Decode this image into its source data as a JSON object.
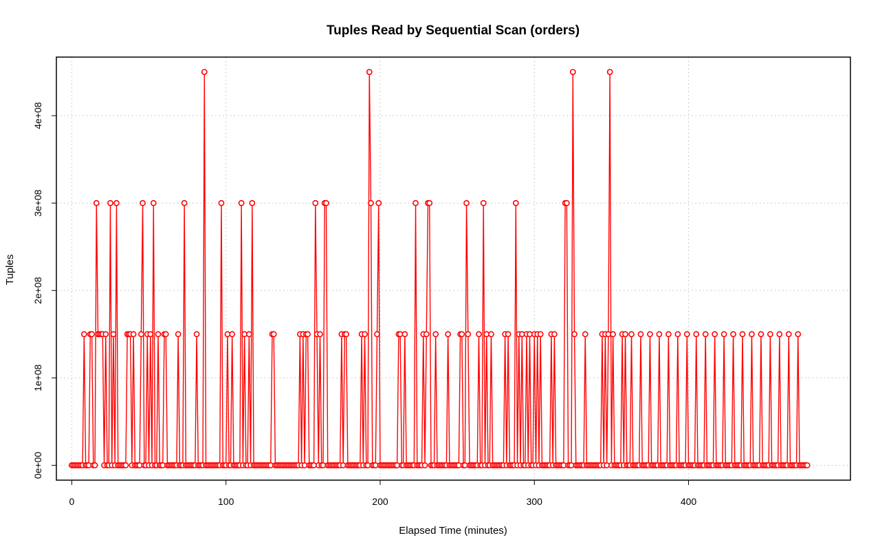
{
  "chart_data": {
    "type": "line",
    "title": "Tuples Read by Sequential Scan (orders)",
    "xlabel": "Elapsed Time (minutes)",
    "ylabel": "Tuples",
    "xlim": [
      -10,
      505
    ],
    "ylim": [
      -17000000,
      467000000
    ],
    "x_ticks": [
      0,
      100,
      200,
      300,
      400
    ],
    "x_tick_labels": [
      "0",
      "100",
      "200",
      "300",
      "400"
    ],
    "y_ticks": [
      0,
      100000000,
      200000000,
      300000000,
      400000000
    ],
    "y_tick_labels": [
      "0e+00",
      "1e+08",
      "2e+08",
      "3e+08",
      "4e+08"
    ],
    "grid": true,
    "grid_style": "dotted",
    "line_style": "line with circle markers",
    "series": [
      {
        "color": "#ff0000",
        "peaks": [
          {
            "x": 8,
            "y": 150000000
          },
          {
            "x": 12,
            "y": 150000000
          },
          {
            "x": 13,
            "y": 150000000
          },
          {
            "x": 16,
            "y": 300000000
          },
          {
            "x": 17,
            "y": 150000000
          },
          {
            "x": 18,
            "y": 150000000
          },
          {
            "x": 19,
            "y": 150000000
          },
          {
            "x": 20,
            "y": 150000000
          },
          {
            "x": 22,
            "y": 150000000
          },
          {
            "x": 25,
            "y": 300000000
          },
          {
            "x": 27,
            "y": 150000000
          },
          {
            "x": 29,
            "y": 300000000
          },
          {
            "x": 36,
            "y": 150000000
          },
          {
            "x": 37,
            "y": 150000000
          },
          {
            "x": 38,
            "y": 150000000
          },
          {
            "x": 40,
            "y": 150000000
          },
          {
            "x": 45,
            "y": 150000000
          },
          {
            "x": 46,
            "y": 300000000
          },
          {
            "x": 49,
            "y": 150000000
          },
          {
            "x": 51,
            "y": 150000000
          },
          {
            "x": 53,
            "y": 300000000
          },
          {
            "x": 56,
            "y": 150000000
          },
          {
            "x": 60,
            "y": 150000000
          },
          {
            "x": 61,
            "y": 150000000
          },
          {
            "x": 69,
            "y": 150000000
          },
          {
            "x": 73,
            "y": 300000000
          },
          {
            "x": 81,
            "y": 150000000
          },
          {
            "x": 86,
            "y": 450000000
          },
          {
            "x": 97,
            "y": 300000000
          },
          {
            "x": 101,
            "y": 150000000
          },
          {
            "x": 104,
            "y": 150000000
          },
          {
            "x": 110,
            "y": 300000000
          },
          {
            "x": 112,
            "y": 150000000
          },
          {
            "x": 115,
            "y": 150000000
          },
          {
            "x": 117,
            "y": 300000000
          },
          {
            "x": 130,
            "y": 150000000
          },
          {
            "x": 131,
            "y": 150000000
          },
          {
            "x": 148,
            "y": 150000000
          },
          {
            "x": 150,
            "y": 150000000
          },
          {
            "x": 152,
            "y": 150000000
          },
          {
            "x": 153,
            "y": 150000000
          },
          {
            "x": 158,
            "y": 300000000
          },
          {
            "x": 159,
            "y": 150000000
          },
          {
            "x": 161,
            "y": 150000000
          },
          {
            "x": 164,
            "y": 300000000
          },
          {
            "x": 165,
            "y": 300000000
          },
          {
            "x": 175,
            "y": 150000000
          },
          {
            "x": 177,
            "y": 150000000
          },
          {
            "x": 178,
            "y": 150000000
          },
          {
            "x": 188,
            "y": 150000000
          },
          {
            "x": 190,
            "y": 150000000
          },
          {
            "x": 193,
            "y": 450000000
          },
          {
            "x": 194,
            "y": 300000000
          },
          {
            "x": 198,
            "y": 150000000
          },
          {
            "x": 199,
            "y": 300000000
          },
          {
            "x": 212,
            "y": 150000000
          },
          {
            "x": 213,
            "y": 150000000
          },
          {
            "x": 216,
            "y": 150000000
          },
          {
            "x": 223,
            "y": 300000000
          },
          {
            "x": 228,
            "y": 150000000
          },
          {
            "x": 230,
            "y": 150000000
          },
          {
            "x": 231,
            "y": 300000000
          },
          {
            "x": 232,
            "y": 300000000
          },
          {
            "x": 236,
            "y": 150000000
          },
          {
            "x": 244,
            "y": 150000000
          },
          {
            "x": 252,
            "y": 150000000
          },
          {
            "x": 253,
            "y": 150000000
          },
          {
            "x": 256,
            "y": 300000000
          },
          {
            "x": 257,
            "y": 150000000
          },
          {
            "x": 264,
            "y": 150000000
          },
          {
            "x": 267,
            "y": 300000000
          },
          {
            "x": 269,
            "y": 150000000
          },
          {
            "x": 272,
            "y": 150000000
          },
          {
            "x": 281,
            "y": 150000000
          },
          {
            "x": 283,
            "y": 150000000
          },
          {
            "x": 288,
            "y": 300000000
          },
          {
            "x": 290,
            "y": 150000000
          },
          {
            "x": 292,
            "y": 150000000
          },
          {
            "x": 295,
            "y": 150000000
          },
          {
            "x": 297,
            "y": 150000000
          },
          {
            "x": 300,
            "y": 150000000
          },
          {
            "x": 302,
            "y": 150000000
          },
          {
            "x": 304,
            "y": 150000000
          },
          {
            "x": 311,
            "y": 150000000
          },
          {
            "x": 313,
            "y": 150000000
          },
          {
            "x": 320,
            "y": 300000000
          },
          {
            "x": 321,
            "y": 300000000
          },
          {
            "x": 325,
            "y": 450000000
          },
          {
            "x": 326,
            "y": 150000000
          },
          {
            "x": 333,
            "y": 150000000
          },
          {
            "x": 344,
            "y": 150000000
          },
          {
            "x": 346,
            "y": 150000000
          },
          {
            "x": 348,
            "y": 150000000
          },
          {
            "x": 349,
            "y": 450000000
          },
          {
            "x": 351,
            "y": 150000000
          },
          {
            "x": 357,
            "y": 150000000
          },
          {
            "x": 359,
            "y": 150000000
          },
          {
            "x": 363,
            "y": 150000000
          },
          {
            "x": 369,
            "y": 150000000
          },
          {
            "x": 375,
            "y": 150000000
          },
          {
            "x": 381,
            "y": 150000000
          },
          {
            "x": 387,
            "y": 150000000
          },
          {
            "x": 393,
            "y": 150000000
          },
          {
            "x": 399,
            "y": 150000000
          },
          {
            "x": 405,
            "y": 150000000
          },
          {
            "x": 411,
            "y": 150000000
          },
          {
            "x": 417,
            "y": 150000000
          },
          {
            "x": 423,
            "y": 150000000
          },
          {
            "x": 429,
            "y": 150000000
          },
          {
            "x": 435,
            "y": 150000000
          },
          {
            "x": 441,
            "y": 150000000
          },
          {
            "x": 447,
            "y": 150000000
          },
          {
            "x": 453,
            "y": 150000000
          },
          {
            "x": 459,
            "y": 150000000
          },
          {
            "x": 465,
            "y": 150000000
          },
          {
            "x": 471,
            "y": 150000000
          }
        ],
        "x_start": 0,
        "x_end": 477,
        "baseline": 0
      }
    ]
  }
}
